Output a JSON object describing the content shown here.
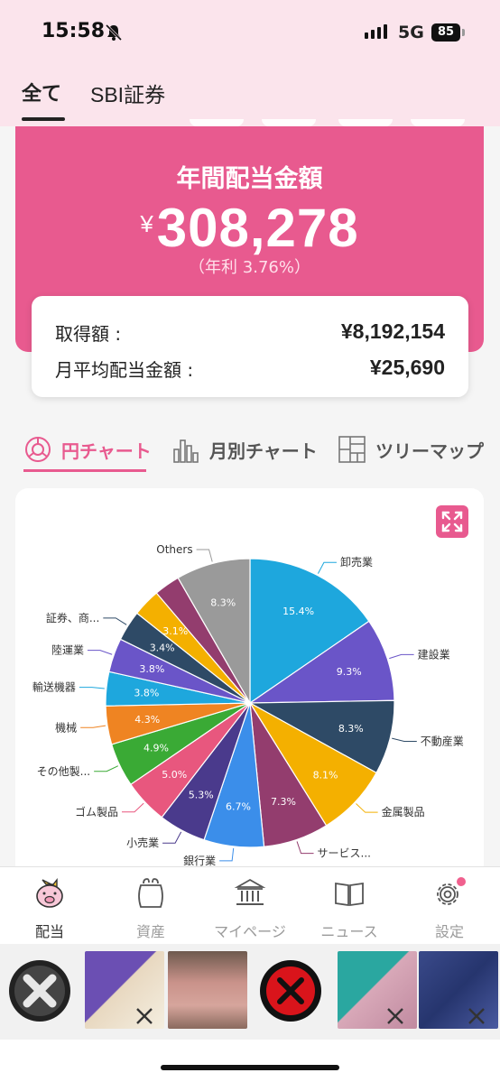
{
  "status_bar": {
    "time": "15:58",
    "network": "5G",
    "battery": "85"
  },
  "tabs": [
    {
      "label": "全て",
      "active": true
    },
    {
      "label": "SBI証券",
      "active": false
    }
  ],
  "summary": {
    "title": "年間配当金額",
    "currency": "¥",
    "amount": "308,278",
    "yield_text": "（年利 3.76%）",
    "rows": [
      {
        "label": "取得額 :",
        "value": "¥8,192,154"
      },
      {
        "label": "月平均配当金額 :",
        "value": "¥25,690"
      }
    ]
  },
  "chart_tabs": [
    {
      "label": "円チャート",
      "icon": "pie-chart-icon",
      "active": true
    },
    {
      "label": "月別チャート",
      "icon": "bar-chart-icon",
      "active": false
    },
    {
      "label": "ツリーマップ",
      "icon": "treemap-icon",
      "active": false
    }
  ],
  "colors": {
    "accent": "#e85a8f",
    "header_bg": "#fbe4ec"
  },
  "chart_data": {
    "type": "pie",
    "slices": [
      {
        "name": "卸売業",
        "value": 15.4,
        "label": "15.4%",
        "color": "#1ea7dd"
      },
      {
        "name": "建設業",
        "value": 9.3,
        "label": "9.3%",
        "color": "#6a55c8"
      },
      {
        "name": "不動産業",
        "value": 8.3,
        "label": "8.3%",
        "color": "#2e4a66"
      },
      {
        "name": "金属製品",
        "value": 8.1,
        "label": "8.1%",
        "color": "#f4b000"
      },
      {
        "name": "サービス...",
        "value": 7.3,
        "label": "7.3%",
        "color": "#933d6e"
      },
      {
        "name": "銀行業",
        "value": 6.7,
        "label": "6.7%",
        "color": "#3b8eea"
      },
      {
        "name": "小売業",
        "value": 5.3,
        "label": "5.3%",
        "color": "#4a3a8c"
      },
      {
        "name": "ゴム製品",
        "value": 5.0,
        "label": "5.0%",
        "color": "#e8577e"
      },
      {
        "name": "その他製...",
        "value": 4.9,
        "label": "4.9%",
        "color": "#3aaa35"
      },
      {
        "name": "機械",
        "value": 4.3,
        "label": "4.3%",
        "color": "#ef8422"
      },
      {
        "name": "輸送機器",
        "value": 3.8,
        "label": "3.8%",
        "color": "#1ea7dd"
      },
      {
        "name": "陸運業",
        "value": 3.8,
        "label": "3.8%",
        "color": "#6a55c8"
      },
      {
        "name": "証券、商...",
        "value": 3.4,
        "label": "3.4%",
        "color": "#2e4a66"
      },
      {
        "name": "",
        "value": 3.1,
        "label": "3.1%",
        "color": "#f4b000"
      },
      {
        "name": "",
        "value": 2.9,
        "label": "",
        "color": "#933d6e"
      },
      {
        "name": "Others",
        "value": 8.3,
        "label": "8.3%",
        "color": "#9a9a9a"
      }
    ]
  },
  "bottom_nav": [
    {
      "label": "配当",
      "icon": "pig-icon",
      "active": true
    },
    {
      "label": "資産",
      "icon": "purse-icon",
      "active": false
    },
    {
      "label": "マイページ",
      "icon": "bank-icon",
      "active": false
    },
    {
      "label": "ニュース",
      "icon": "book-icon",
      "active": false
    },
    {
      "label": "設定",
      "icon": "gear-icon",
      "active": false
    }
  ]
}
